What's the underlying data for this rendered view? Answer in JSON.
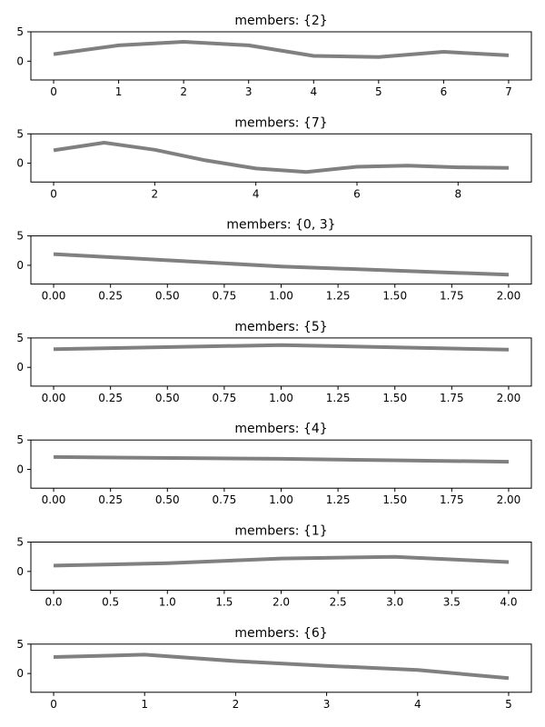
{
  "chart_data": [
    {
      "type": "line",
      "title": "members: {2}",
      "x": [
        0,
        1,
        2,
        3,
        4,
        5,
        6,
        7
      ],
      "y": [
        1.2,
        2.7,
        3.3,
        2.7,
        0.9,
        0.7,
        1.6,
        1.0
      ],
      "xlim": [
        -0.35,
        7.35
      ],
      "ylim": [
        -3.2,
        5
      ],
      "xticks": [
        0,
        1,
        2,
        3,
        4,
        5,
        6,
        7
      ],
      "xtick_labels": [
        "0",
        "1",
        "2",
        "3",
        "4",
        "5",
        "6",
        "7"
      ],
      "yticks": [
        0,
        5
      ],
      "ytick_labels": [
        "0",
        "5"
      ],
      "color": "#808080"
    },
    {
      "type": "line",
      "title": "members: {7}",
      "x": [
        0,
        1,
        2,
        3,
        4,
        5,
        6,
        7,
        8,
        9
      ],
      "y": [
        2.2,
        3.5,
        2.3,
        0.5,
        -0.9,
        -1.5,
        -0.6,
        -0.4,
        -0.7,
        -0.8
      ],
      "xlim": [
        -0.45,
        9.45
      ],
      "ylim": [
        -3.2,
        5
      ],
      "xticks": [
        0,
        2,
        4,
        6,
        8
      ],
      "xtick_labels": [
        "0",
        "2",
        "4",
        "6",
        "8"
      ],
      "yticks": [
        0,
        5
      ],
      "ytick_labels": [
        "0",
        "5"
      ],
      "color": "#808080"
    },
    {
      "type": "line",
      "title": "members: {0, 3}",
      "x": [
        0,
        1,
        2
      ],
      "y": [
        1.9,
        -0.2,
        -1.6
      ],
      "xlim": [
        -0.1,
        2.1
      ],
      "ylim": [
        -3.2,
        5
      ],
      "xticks": [
        0,
        0.25,
        0.5,
        0.75,
        1,
        1.25,
        1.5,
        1.75,
        2
      ],
      "xtick_labels": [
        "0.00",
        "0.25",
        "0.50",
        "0.75",
        "1.00",
        "1.25",
        "1.50",
        "1.75",
        "2.00"
      ],
      "yticks": [
        0,
        5
      ],
      "ytick_labels": [
        "0",
        "5"
      ],
      "color": "#808080"
    },
    {
      "type": "line",
      "title": "members: {5}",
      "x": [
        0,
        1,
        2
      ],
      "y": [
        3.1,
        3.8,
        3.0
      ],
      "xlim": [
        -0.1,
        2.1
      ],
      "ylim": [
        -3.2,
        5
      ],
      "xticks": [
        0,
        0.25,
        0.5,
        0.75,
        1,
        1.25,
        1.5,
        1.75,
        2
      ],
      "xtick_labels": [
        "0.00",
        "0.25",
        "0.50",
        "0.75",
        "1.00",
        "1.25",
        "1.50",
        "1.75",
        "2.00"
      ],
      "yticks": [
        0,
        5
      ],
      "ytick_labels": [
        "0",
        "5"
      ],
      "color": "#808080"
    },
    {
      "type": "line",
      "title": "members: {4}",
      "x": [
        0,
        1,
        2
      ],
      "y": [
        2.1,
        1.8,
        1.3
      ],
      "xlim": [
        -0.1,
        2.1
      ],
      "ylim": [
        -3.2,
        5
      ],
      "xticks": [
        0,
        0.25,
        0.5,
        0.75,
        1,
        1.25,
        1.5,
        1.75,
        2
      ],
      "xtick_labels": [
        "0.00",
        "0.25",
        "0.50",
        "0.75",
        "1.00",
        "1.25",
        "1.50",
        "1.75",
        "2.00"
      ],
      "yticks": [
        0,
        5
      ],
      "ytick_labels": [
        "0",
        "5"
      ],
      "color": "#808080"
    },
    {
      "type": "line",
      "title": "members: {1}",
      "x": [
        0,
        1,
        2,
        3,
        4
      ],
      "y": [
        1.0,
        1.4,
        2.2,
        2.5,
        1.6
      ],
      "xlim": [
        -0.2,
        4.2
      ],
      "ylim": [
        -3.2,
        5
      ],
      "xticks": [
        0,
        0.5,
        1,
        1.5,
        2,
        2.5,
        3,
        3.5,
        4
      ],
      "xtick_labels": [
        "0.0",
        "0.5",
        "1.0",
        "1.5",
        "2.0",
        "2.5",
        "3.0",
        "3.5",
        "4.0"
      ],
      "yticks": [
        0,
        5
      ],
      "ytick_labels": [
        "0",
        "5"
      ],
      "color": "#808080"
    },
    {
      "type": "line",
      "title": "members: {6}",
      "x": [
        0,
        1,
        2,
        3,
        4,
        5
      ],
      "y": [
        2.8,
        3.2,
        2.1,
        1.3,
        0.6,
        -0.8
      ],
      "xlim": [
        -0.25,
        5.25
      ],
      "ylim": [
        -3.2,
        5
      ],
      "xticks": [
        0,
        1,
        2,
        3,
        4,
        5
      ],
      "xtick_labels": [
        "0",
        "1",
        "2",
        "3",
        "4",
        "5"
      ],
      "yticks": [
        0,
        5
      ],
      "ytick_labels": [
        "0",
        "5"
      ],
      "color": "#808080"
    }
  ]
}
